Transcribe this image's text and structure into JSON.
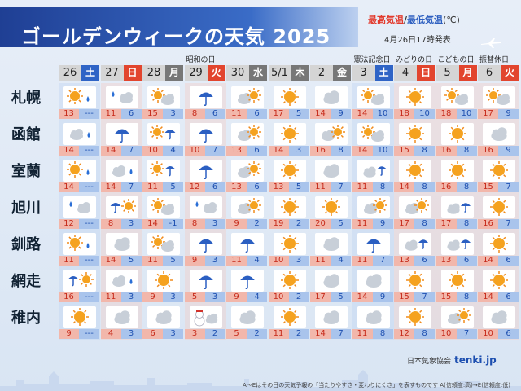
{
  "title": "ゴールデンウィークの天気 2025",
  "legend": {
    "hi": "最高気温",
    "sep": "/",
    "lo": "最低気温",
    "unit": "(℃)"
  },
  "issued": "4月26日17時発表",
  "colors": {
    "sat": "#2f64c6",
    "sun": "#e2452e",
    "hi": "#c62a1a",
    "lo": "#1d4fb0"
  },
  "days": [
    {
      "num": "26",
      "wd": "土",
      "type": "sat",
      "holiday": ""
    },
    {
      "num": "27",
      "wd": "日",
      "type": "sun",
      "holiday": ""
    },
    {
      "num": "28",
      "wd": "月",
      "type": "wk",
      "holiday": ""
    },
    {
      "num": "29",
      "wd": "火",
      "type": "hol",
      "holiday": "昭和の日"
    },
    {
      "num": "30",
      "wd": "水",
      "type": "wk",
      "holiday": ""
    },
    {
      "num": "5/1",
      "wd": "木",
      "type": "wk",
      "holiday": ""
    },
    {
      "num": "2",
      "wd": "金",
      "type": "wk",
      "holiday": ""
    },
    {
      "num": "3",
      "wd": "土",
      "type": "sat",
      "holiday": "憲法記念日"
    },
    {
      "num": "4",
      "wd": "日",
      "type": "sun",
      "holiday": "みどりの日"
    },
    {
      "num": "5",
      "wd": "月",
      "type": "hol",
      "holiday": "こどもの日"
    },
    {
      "num": "6",
      "wd": "火",
      "type": "hol",
      "holiday": "振替休日"
    }
  ],
  "cities": [
    {
      "name": "札幌",
      "icons": [
        "sun-rain",
        "rain-cloud",
        "sun-cloud",
        "umbrella",
        "cloud-sun",
        "sun",
        "cloud",
        "sun-cloud",
        "sun",
        "sun-cloud",
        "sun-cloud"
      ],
      "hi": [
        "13",
        "11",
        "15",
        "8",
        "11",
        "17",
        "14",
        "14",
        "18",
        "18",
        "17"
      ],
      "lo": [
        "---",
        "6",
        "3",
        "6",
        "6",
        "5",
        "9",
        "10",
        "10",
        "10",
        "9"
      ]
    },
    {
      "name": "函館",
      "icons": [
        "cloud-rain",
        "umbrella",
        "sun-umbrella",
        "umbrella",
        "cloud-sun",
        "sun",
        "cloud-sun",
        "sun-cloud",
        "sun",
        "sun",
        "cloud"
      ],
      "hi": [
        "14",
        "14",
        "10",
        "10",
        "13",
        "14",
        "16",
        "14",
        "15",
        "16",
        "16"
      ],
      "lo": [
        "---",
        "7",
        "4",
        "7",
        "6",
        "3",
        "8",
        "10",
        "8",
        "8",
        "9"
      ]
    },
    {
      "name": "室蘭",
      "icons": [
        "sun-rain",
        "cloud-rain",
        "sun-umbrella",
        "umbrella",
        "cloud-sun",
        "sun",
        "cloud",
        "cloud-umbrella",
        "sun",
        "sun",
        "sun"
      ],
      "hi": [
        "14",
        "14",
        "11",
        "12",
        "13",
        "13",
        "11",
        "11",
        "14",
        "16",
        "15"
      ],
      "lo": [
        "---",
        "7",
        "5",
        "6",
        "6",
        "5",
        "7",
        "8",
        "8",
        "8",
        "7"
      ]
    },
    {
      "name": "旭川",
      "icons": [
        "rain-cloud",
        "umbrella-sun",
        "sun-cloud",
        "rain-cloud",
        "cloud-sun",
        "sun",
        "sun",
        "cloud-sun",
        "cloud-sun",
        "cloud-umbrella",
        "sun"
      ],
      "hi": [
        "12",
        "8",
        "14",
        "8",
        "9",
        "19",
        "20",
        "11",
        "17",
        "17",
        "16"
      ],
      "lo": [
        "---",
        "3",
        "-1",
        "3",
        "2",
        "2",
        "5",
        "9",
        "8",
        "8",
        "7"
      ]
    },
    {
      "name": "釧路",
      "icons": [
        "sun-rain",
        "cloud",
        "sun-cloud",
        "umbrella",
        "umbrella",
        "sun",
        "cloud",
        "umbrella",
        "cloud-umbrella",
        "cloud-umbrella",
        "sun"
      ],
      "hi": [
        "11",
        "14",
        "11",
        "9",
        "11",
        "10",
        "11",
        "11",
        "13",
        "13",
        "14"
      ],
      "lo": [
        "---",
        "5",
        "5",
        "3",
        "4",
        "3",
        "4",
        "7",
        "6",
        "6",
        "6"
      ]
    },
    {
      "name": "網走",
      "icons": [
        "rain-sun",
        "cloud-rain",
        "sun",
        "umbrella",
        "umbrella",
        "sun",
        "cloud",
        "cloud",
        "sun",
        "sun",
        "sun"
      ],
      "hi": [
        "16",
        "11",
        "9",
        "5",
        "9",
        "10",
        "17",
        "14",
        "15",
        "15",
        "14"
      ],
      "lo": [
        "---",
        "3",
        "3",
        "3",
        "4",
        "2",
        "5",
        "9",
        "7",
        "8",
        "6"
      ]
    },
    {
      "name": "稚内",
      "icons": [
        "sun",
        "cloud",
        "cloud",
        "snow-cloud",
        "cloud",
        "sun",
        "cloud",
        "cloud",
        "sun",
        "cloud-sun",
        "cloud"
      ],
      "hi": [
        "9",
        "4",
        "6",
        "3",
        "5",
        "11",
        "14",
        "11",
        "12",
        "10",
        "10"
      ],
      "lo": [
        "---",
        "3",
        "3",
        "2",
        "2",
        "2",
        "7",
        "8",
        "8",
        "7",
        "6"
      ]
    }
  ],
  "footer": {
    "credits": "日本気象協会",
    "brand": "tenki.jp",
    "note": "A～Eはその日の天気予報の「当たりやすさ・変わりにくさ」を表すものです A(信頼度:高)→E(信頼度:低)"
  }
}
